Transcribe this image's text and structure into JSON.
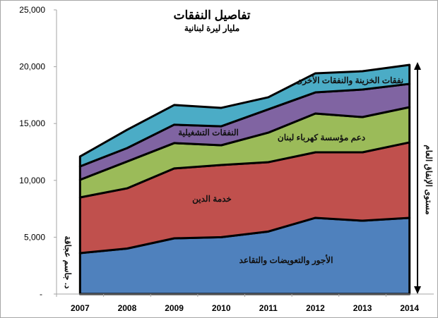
{
  "chart_data": {
    "type": "area",
    "stacked": true,
    "title": "تفاصيل النفقات",
    "subtitle": "مليار ليرة لبنانية",
    "xlabel": "",
    "ylabel": "",
    "ylim": [
      0,
      25000
    ],
    "yticks": [
      {
        "value": 0,
        "label": "-"
      },
      {
        "value": 5000,
        "label": "5,000"
      },
      {
        "value": 10000,
        "label": "10,000"
      },
      {
        "value": 15000,
        "label": "15,000"
      },
      {
        "value": 20000,
        "label": "20,000"
      },
      {
        "value": 25000,
        "label": "25,000"
      }
    ],
    "categories": [
      "2007",
      "2008",
      "2009",
      "2010",
      "2011",
      "2012",
      "2013",
      "2014"
    ],
    "series": [
      {
        "name": "الأجور والتعويضات والتقاعد",
        "color": "#4f81bd",
        "values": [
          3600,
          4000,
          4900,
          5000,
          5500,
          6700,
          6450,
          6700
        ]
      },
      {
        "name": "خدمة الدين",
        "color": "#c0504d",
        "values": [
          4900,
          5300,
          6150,
          6350,
          6100,
          5770,
          6020,
          6640
        ]
      },
      {
        "name": "دعم مؤسسة كهرباء لبنان",
        "color": "#9bbb59",
        "values": [
          1550,
          2360,
          2230,
          1740,
          2600,
          3410,
          3100,
          3100
        ]
      },
      {
        "name": "النفقات التشغيلية",
        "color": "#8064a2",
        "values": [
          1180,
          1180,
          1620,
          1670,
          2050,
          1860,
          2420,
          2050
        ]
      },
      {
        "name": "نفقات الخزينة والنفقات الأخرى",
        "color": "#4bacc6",
        "values": [
          870,
          1610,
          1730,
          1620,
          1060,
          1680,
          1610,
          1670
        ]
      }
    ],
    "annotations": {
      "arrow_label": "مستوى الإنفاق العام",
      "author": "د. جاسم عجاقة"
    },
    "grid": false,
    "legend": "none (labels inside areas)"
  }
}
